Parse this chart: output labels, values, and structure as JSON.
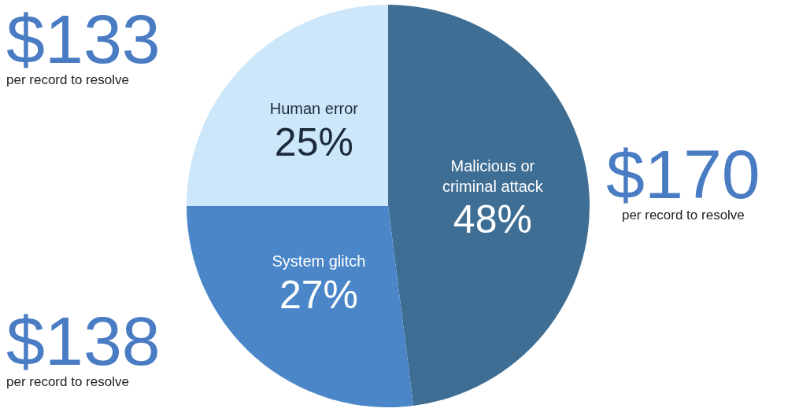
{
  "chart_data": {
    "type": "pie",
    "categories": [
      "Malicious or criminal attack",
      "System glitch",
      "Human error"
    ],
    "values": [
      48,
      27,
      25
    ],
    "colors": [
      "#3f6e94",
      "#4a86c8",
      "#cce6fa"
    ],
    "value_labels": [
      "48%",
      "27%",
      "25%"
    ],
    "legend": false,
    "annotations": [
      "$133\nper record to resolve",
      "$170\nper record to resolve",
      "$138\nper record to resolve"
    ]
  }
}
